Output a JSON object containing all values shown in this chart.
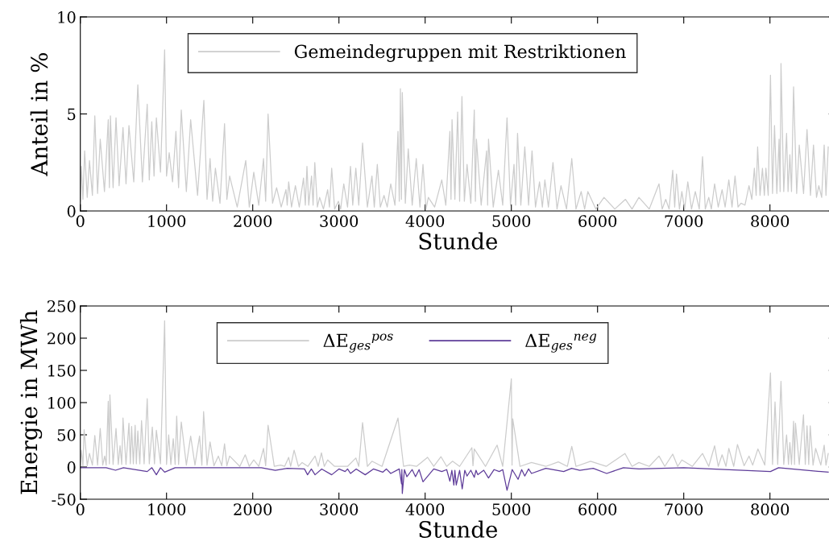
{
  "chart_data": [
    {
      "type": "line",
      "xlabel": "Stunde",
      "ylabel": "Anteil in %",
      "xlim": [
        0,
        8760
      ],
      "xticks": [
        0,
        1000,
        2000,
        3000,
        4000,
        5000,
        6000,
        7000,
        8000
      ],
      "ylim": [
        0,
        10
      ],
      "yticks": [
        0,
        5,
        10
      ],
      "grid": false,
      "legend": "top",
      "series": [
        {
          "name": "Gemeindegruppen mit Restriktionen",
          "color": "#cccccc",
          "x": [
            0,
            12,
            30,
            50,
            80,
            106,
            140,
            168,
            200,
            231,
            280,
            324,
            337,
            349,
            380,
            414,
            450,
            495,
            530,
            564,
            620,
            667,
            720,
            776,
            800,
            829,
            855,
            882,
            930,
            978,
            1000,
            1031,
            1070,
            1109,
            1140,
            1171,
            1230,
            1280,
            1360,
            1433,
            1470,
            1505,
            1535,
            1567,
            1620,
            1673,
            1700,
            1732,
            1820,
            1919,
            1960,
            2012,
            2070,
            2125,
            2150,
            2178,
            2230,
            2277,
            2330,
            2386,
            2400,
            2417,
            2450,
            2495,
            2540,
            2589,
            2610,
            2629,
            2650,
            2682,
            2700,
            2720,
            2750,
            2776,
            2820,
            2869,
            2890,
            2916,
            2950,
            2994,
            3020,
            3056,
            3100,
            3134,
            3160,
            3196,
            3230,
            3274,
            3330,
            3383,
            3410,
            3445,
            3480,
            3523,
            3560,
            3601,
            3650,
            3685,
            3700,
            3713,
            3725,
            3735,
            3770,
            3804,
            3850,
            3897,
            3940,
            3975,
            4010,
            4037,
            4110,
            4193,
            4240,
            4287,
            4300,
            4312,
            4345,
            4377,
            4400,
            4427,
            4455,
            4486,
            4530,
            4570,
            4583,
            4595,
            4650,
            4713,
            4725,
            4735,
            4790,
            4850,
            4900,
            4950,
            4990,
            5031,
            5050,
            5072,
            5110,
            5156,
            5200,
            5240,
            5280,
            5327,
            5360,
            5389,
            5430,
            5483,
            5530,
            5576,
            5640,
            5701,
            5750,
            5810,
            5850,
            5888,
            5980,
            6075,
            6200,
            6324,
            6400,
            6480,
            6600,
            6713,
            6750,
            6791,
            6830,
            6872,
            6895,
            6916,
            6950,
            6978,
            7010,
            7047,
            7090,
            7134,
            7180,
            7218,
            7250,
            7290,
            7320,
            7358,
            7400,
            7445,
            7480,
            7523,
            7560,
            7595,
            7630,
            7664,
            7710,
            7757,
            7790,
            7819,
            7840,
            7857,
            7885,
            7913,
            7935,
            7953,
            7980,
            8006,
            8030,
            8053,
            8080,
            8106,
            8118,
            8128,
            8160,
            8193,
            8210,
            8231,
            8250,
            8274,
            8310,
            8340,
            8390,
            8430,
            8470,
            8505,
            8540,
            8567,
            8600,
            8629,
            8650,
            8676
          ],
          "values": [
            0.5,
            2.3,
            0.6,
            3.1,
            0.7,
            2.6,
            0.8,
            4.9,
            0.9,
            3.7,
            1.0,
            4.7,
            1.2,
            4.9,
            1.2,
            4.8,
            1.3,
            4.3,
            1.4,
            4.4,
            1.5,
            6.5,
            1.5,
            5.5,
            1.6,
            4.6,
            1.8,
            4.8,
            2.0,
            8.3,
            1.8,
            3.0,
            1.5,
            4.1,
            1.2,
            5.2,
            1.0,
            4.7,
            0.8,
            5.7,
            0.6,
            2.7,
            0.5,
            2.2,
            0.4,
            4.5,
            0.6,
            1.8,
            0.2,
            2.6,
            0.2,
            2.0,
            0.3,
            2.7,
            0.5,
            5.0,
            0.4,
            1.2,
            0.2,
            1.1,
            0.3,
            1.5,
            0.2,
            1.3,
            0.2,
            1.7,
            0.3,
            2.3,
            0.3,
            1.8,
            0.3,
            2.5,
            0.2,
            0.7,
            0.1,
            1.1,
            0.2,
            2.2,
            0.1,
            0.5,
            0.1,
            1.4,
            0.2,
            2.3,
            0.3,
            2.2,
            0.3,
            3.5,
            0.2,
            1.8,
            0.2,
            2.4,
            0.2,
            0.8,
            0.2,
            1.4,
            0.3,
            4.1,
            0.5,
            6.3,
            0.6,
            6.1,
            0.4,
            3.2,
            0.3,
            2.7,
            0.2,
            2.4,
            0.1,
            0.7,
            0.2,
            1.6,
            0.3,
            4.1,
            0.6,
            4.7,
            0.6,
            5.1,
            0.5,
            5.9,
            0.5,
            2.4,
            0.4,
            5.2,
            0.5,
            3.7,
            0.3,
            3.1,
            0.3,
            3.7,
            0.2,
            2.1,
            0.3,
            4.8,
            0.3,
            2.4,
            0.3,
            4.0,
            0.3,
            3.3,
            0.3,
            3.1,
            0.2,
            1.5,
            0.2,
            1.6,
            0.2,
            2.5,
            0.1,
            1.3,
            0.1,
            2.7,
            0.1,
            1.0,
            0.1,
            1.0,
            0.1,
            0.7,
            0.1,
            0.6,
            0.1,
            0.7,
            0.1,
            1.4,
            0.1,
            0.6,
            0.1,
            2.1,
            0.2,
            1.9,
            0.1,
            1.0,
            0.1,
            1.5,
            0.1,
            1.0,
            0.1,
            2.8,
            0.1,
            0.7,
            0.1,
            1.4,
            0.2,
            1.1,
            0.2,
            1.6,
            0.2,
            1.8,
            0.2,
            0.4,
            0.3,
            1.3,
            0.6,
            2.2,
            0.8,
            3.3,
            0.8,
            2.2,
            0.8,
            2.2,
            0.8,
            7.0,
            0.9,
            4.4,
            0.9,
            3.7,
            1.0,
            7.6,
            1.0,
            4.0,
            1.0,
            2.9,
            1.0,
            6.4,
            0.9,
            3.4,
            0.9,
            4.2,
            0.8,
            3.4,
            0.7,
            1.3,
            0.7,
            3.4,
            0.8,
            3.3
          ]
        }
      ]
    },
    {
      "type": "line",
      "xlabel": "Stunde",
      "ylabel": "Energie in MWh",
      "xlim": [
        0,
        8760
      ],
      "xticks": [
        0,
        1000,
        2000,
        3000,
        4000,
        5000,
        6000,
        7000,
        8000
      ],
      "ylim": [
        -50,
        250
      ],
      "yticks": [
        -50,
        0,
        50,
        100,
        150,
        200,
        250
      ],
      "grid": false,
      "legend": "top",
      "series": [
        {
          "name": "ΔE$_{ges}$$^{pos}$",
          "color": "#cccccc",
          "x": [
            0,
            12,
            30,
            44,
            80,
            106,
            140,
            168,
            200,
            231,
            260,
            283,
            300,
            324,
            337,
            343,
            380,
            414,
            440,
            461,
            480,
            495,
            530,
            564,
            580,
            595,
            615,
            636,
            650,
            667,
            690,
            710,
            740,
            776,
            800,
            835,
            860,
            882,
            930,
            978,
            1000,
            1025,
            1050,
            1078,
            1100,
            1118,
            1140,
            1171,
            1230,
            1280,
            1330,
            1383,
            1410,
            1430,
            1470,
            1505,
            1550,
            1601,
            1640,
            1673,
            1700,
            1732,
            1850,
            1913,
            1960,
            2012,
            2070,
            2125,
            2150,
            2178,
            2250,
            2324,
            2370,
            2417,
            2440,
            2480,
            2530,
            2573,
            2640,
            2723,
            2760,
            2797,
            2830,
            2869,
            2950,
            3000,
            3100,
            3196,
            3230,
            3274,
            3330,
            3383,
            3500,
            3685,
            3750,
            3819,
            3900,
            4028,
            4100,
            4184,
            4250,
            4318,
            4400,
            4542,
            4555,
            4570,
            4700,
            4835,
            4900,
            5000,
            5008,
            5016,
            5100,
            5234,
            5400,
            5545,
            5650,
            5701,
            5750,
            5919,
            6100,
            6318,
            6400,
            6480,
            6600,
            6713,
            6780,
            6872,
            6930,
            6978,
            7100,
            7218,
            7290,
            7358,
            7400,
            7445,
            7490,
            7523,
            7580,
            7623,
            7700,
            7757,
            7800,
            7860,
            7940,
            8006,
            8030,
            8059,
            8090,
            8128,
            8160,
            8193,
            8215,
            8231,
            8250,
            8274,
            8285,
            8296,
            8340,
            8389,
            8410,
            8430,
            8450,
            8467,
            8500,
            8530,
            8590,
            8629,
            8650,
            8676
          ],
          "values": [
            3,
            26,
            2,
            58,
            2,
            21,
            3,
            49,
            3,
            60,
            3,
            17,
            3,
            102,
            5,
            112,
            4,
            60,
            4,
            33,
            4,
            76,
            4,
            68,
            5,
            63,
            5,
            65,
            5,
            56,
            5,
            72,
            5,
            106,
            5,
            62,
            5,
            57,
            5,
            227,
            4,
            50,
            4,
            44,
            4,
            79,
            4,
            70,
            3,
            48,
            3,
            48,
            3,
            86,
            3,
            39,
            2,
            17,
            2,
            36,
            2,
            17,
            1,
            19,
            1,
            11,
            1,
            29,
            2,
            65,
            1,
            3,
            1,
            15,
            1,
            26,
            1,
            7,
            1,
            17,
            1,
            22,
            1,
            11,
            1,
            1,
            1,
            14,
            1,
            69,
            1,
            9,
            1,
            76,
            1,
            3,
            1,
            15,
            1,
            16,
            1,
            9,
            1,
            30,
            2,
            28,
            1,
            34,
            1,
            137,
            3,
            75,
            1,
            7,
            1,
            8,
            1,
            32,
            1,
            9,
            1,
            21,
            1,
            7,
            1,
            17,
            1,
            20,
            1,
            11,
            1,
            21,
            1,
            33,
            1,
            19,
            1,
            29,
            1,
            35,
            2,
            17,
            3,
            28,
            3,
            146,
            4,
            101,
            4,
            133,
            4,
            50,
            4,
            38,
            4,
            71,
            4,
            68,
            4,
            81,
            4,
            64,
            4,
            64,
            3,
            29,
            3,
            34,
            3,
            21
          ]
        },
        {
          "name": "ΔE$_{ges}$$^{neg}$",
          "color": "#5e3c99",
          "x": [
            0,
            300,
            408,
            500,
            776,
            830,
            882,
            930,
            978,
            1100,
            2100,
            2262,
            2400,
            2600,
            2636,
            2680,
            2723,
            2800,
            2916,
            3000,
            3072,
            3100,
            3134,
            3200,
            3305,
            3400,
            3508,
            3550,
            3601,
            3700,
            3726,
            3730,
            3735,
            3760,
            3788,
            3850,
            3888,
            3930,
            3975,
            4100,
            4193,
            4250,
            4287,
            4310,
            4333,
            4345,
            4361,
            4400,
            4430,
            4460,
            4486,
            4530,
            4570,
            4590,
            4611,
            4680,
            4735,
            4800,
            4860,
            4900,
            4950,
            5010,
            5078,
            5120,
            5156,
            5200,
            5234,
            5400,
            5607,
            5700,
            5794,
            5950,
            6106,
            6300,
            6480,
            7000,
            8006,
            8100,
            8676
          ],
          "values": [
            -1,
            -1,
            -5,
            -1,
            -7,
            -1,
            -12,
            -1,
            -8,
            -1,
            -1,
            -5,
            -2,
            -3,
            -12,
            -3,
            -12,
            -3,
            -12,
            -3,
            -7,
            -3,
            -10,
            -3,
            -12,
            -3,
            -8,
            -3,
            -10,
            -3,
            -26,
            -4,
            -41,
            -4,
            -15,
            -4,
            -15,
            -4,
            -23,
            -3,
            -7,
            -4,
            -22,
            -5,
            -28,
            -5,
            -28,
            -5,
            -34,
            -5,
            -14,
            -5,
            -16,
            -5,
            -12,
            -5,
            -17,
            -4,
            -7,
            -4,
            -36,
            -4,
            -19,
            -4,
            -14,
            -3,
            -10,
            -2,
            -7,
            -2,
            -5,
            -2,
            -10,
            -1,
            -3,
            -1,
            -7,
            -1,
            -8
          ]
        }
      ]
    }
  ]
}
